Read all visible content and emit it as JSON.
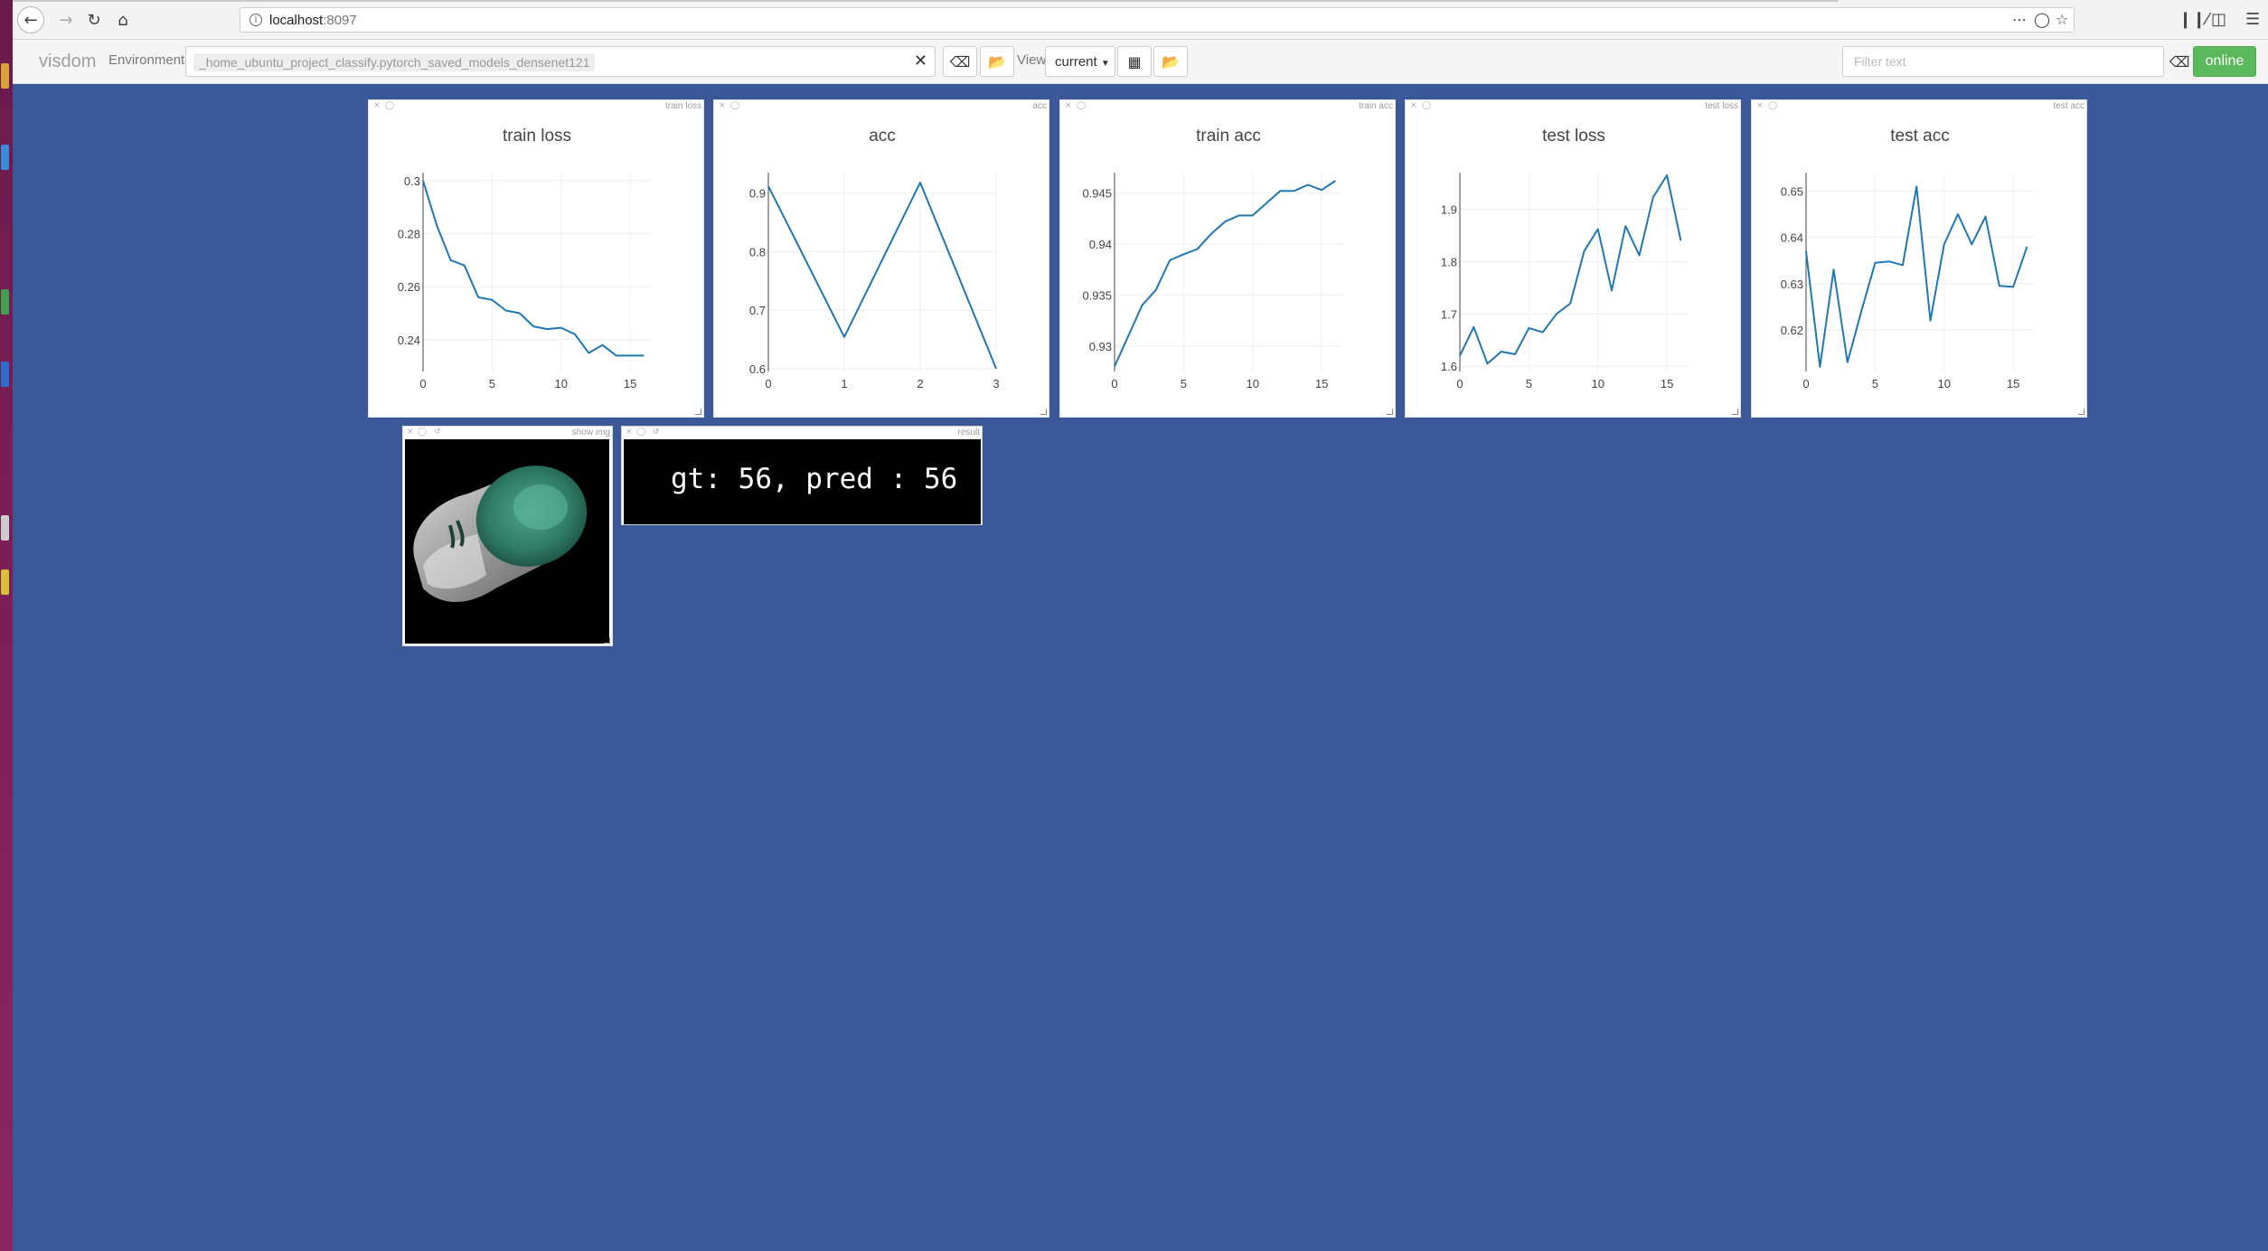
{
  "browser": {
    "url_host": "localhost",
    "url_port": ":8097",
    "icons": {
      "back": "back-arrow-icon",
      "forward": "forward-arrow-icon",
      "reload": "reload-icon",
      "home": "home-icon"
    }
  },
  "visdom": {
    "brand": "visdom",
    "environment_label": "Environment",
    "environment_value": "_home_ubuntu_project_classify.pytorch_saved_models_densenet121",
    "view_label": "View",
    "view_value": "current",
    "filter_placeholder": "Filter text",
    "status": "online",
    "status_color": "#5cb85c",
    "background_color": "#3b5998"
  },
  "panes": [
    {
      "name": "train loss"
    },
    {
      "name": "acc"
    },
    {
      "name": "train acc"
    },
    {
      "name": "test loss"
    },
    {
      "name": "test acc"
    },
    {
      "name": "show img"
    },
    {
      "name": "result"
    }
  ],
  "result_text": "gt: 56, pred : 56",
  "chart_data": [
    {
      "type": "line",
      "title": "train loss",
      "xlim": [
        0,
        16.5
      ],
      "ylim": [
        0.228,
        0.303
      ],
      "xticks": [
        0,
        5,
        10,
        15
      ],
      "yticks": [
        0.24,
        0.26,
        0.28,
        0.3
      ],
      "ytick_labels": [
        "0.24",
        "0.26",
        "0.28",
        "0.3"
      ],
      "x": [
        0,
        1,
        2,
        3,
        4,
        5,
        6,
        7,
        8,
        9,
        10,
        11,
        12,
        13,
        14,
        15,
        16
      ],
      "y": [
        0.3,
        0.283,
        0.27,
        0.268,
        0.256,
        0.255,
        0.251,
        0.25,
        0.245,
        0.244,
        0.2445,
        0.242,
        0.235,
        0.238,
        0.234,
        0.234,
        0.234
      ],
      "color": "#1f77b4"
    },
    {
      "type": "line",
      "title": "acc",
      "xlim": [
        0,
        3
      ],
      "ylim": [
        0.595,
        0.935
      ],
      "xticks": [
        0,
        1,
        2,
        3
      ],
      "yticks": [
        0.6,
        0.7,
        0.8,
        0.9
      ],
      "ytick_labels": [
        "0.6",
        "0.7",
        "0.8",
        "0.9"
      ],
      "x": [
        0,
        1,
        2,
        3
      ],
      "y": [
        0.912,
        0.654,
        0.918,
        0.6
      ],
      "color": "#1f77b4"
    },
    {
      "type": "line",
      "title": "train acc",
      "xlim": [
        0,
        16.5
      ],
      "ylim": [
        0.9275,
        0.947
      ],
      "xticks": [
        0,
        5,
        10,
        15
      ],
      "yticks": [
        0.93,
        0.935,
        0.94,
        0.945
      ],
      "ytick_labels": [
        "0.93",
        "0.935",
        "0.94",
        "0.945"
      ],
      "x": [
        0,
        1,
        2,
        3,
        4,
        5,
        6,
        7,
        8,
        9,
        10,
        11,
        12,
        13,
        14,
        15,
        16
      ],
      "y": [
        0.928,
        0.931,
        0.934,
        0.9355,
        0.9384,
        0.939,
        0.9395,
        0.941,
        0.9422,
        0.9428,
        0.9428,
        0.944,
        0.9452,
        0.9452,
        0.9458,
        0.9453,
        0.9462
      ],
      "color": "#1f77b4"
    },
    {
      "type": "line",
      "title": "test loss",
      "xlim": [
        0,
        16.5
      ],
      "ylim": [
        1.59,
        1.97
      ],
      "xticks": [
        0,
        5,
        10,
        15
      ],
      "yticks": [
        1.6,
        1.7,
        1.8,
        1.9
      ],
      "ytick_labels": [
        "1.6",
        "1.7",
        "1.8",
        "1.9"
      ],
      "x": [
        0,
        1,
        2,
        3,
        4,
        5,
        6,
        7,
        8,
        9,
        10,
        11,
        12,
        13,
        14,
        15,
        16
      ],
      "y": [
        1.62,
        1.675,
        1.605,
        1.628,
        1.623,
        1.673,
        1.665,
        1.7,
        1.72,
        1.82,
        1.862,
        1.745,
        1.868,
        1.812,
        1.923,
        1.965,
        1.84
      ],
      "color": "#1f77b4"
    },
    {
      "type": "line",
      "title": "test acc",
      "xlim": [
        0,
        16.5
      ],
      "ylim": [
        0.611,
        0.654
      ],
      "xticks": [
        0,
        5,
        10,
        15
      ],
      "yticks": [
        0.62,
        0.63,
        0.64,
        0.65
      ],
      "ytick_labels": [
        "0.62",
        "0.63",
        "0.64",
        "0.65"
      ],
      "x": [
        0,
        1,
        2,
        3,
        4,
        5,
        6,
        7,
        8,
        9,
        10,
        11,
        12,
        13,
        14,
        15,
        16
      ],
      "y": [
        0.637,
        0.612,
        0.633,
        0.613,
        0.624,
        0.6345,
        0.6348,
        0.634,
        0.651,
        0.622,
        0.6385,
        0.645,
        0.6385,
        0.6445,
        0.6295,
        0.6293,
        0.638
      ],
      "color": "#1f77b4"
    }
  ]
}
